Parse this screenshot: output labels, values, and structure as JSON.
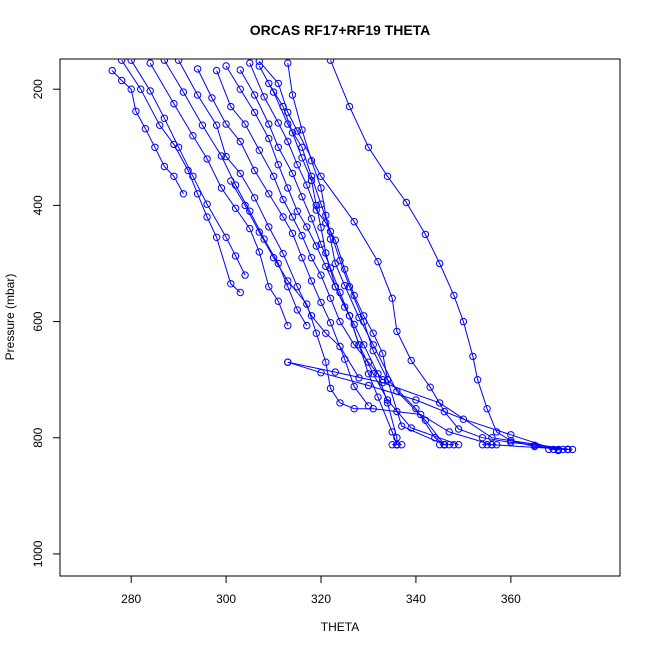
{
  "chart_data": {
    "type": "line",
    "title": "ORCAS RF17+RF19 THETA",
    "xlabel": "THETA",
    "ylabel": "Pressure (mbar)",
    "xlim": [
      265,
      383
    ],
    "ylim": [
      1038,
      148
    ],
    "y_reversed": true,
    "x_ticks": [
      280,
      300,
      320,
      340,
      360
    ],
    "y_ticks": [
      200,
      400,
      600,
      800,
      1000
    ],
    "grid": false,
    "legend": "none",
    "markers": "open-circle",
    "color": "#0000ff",
    "series": [
      {
        "points": [
          [
            276,
            168
          ],
          [
            278,
            185
          ],
          [
            280,
            200
          ],
          [
            281,
            238
          ],
          [
            283,
            268
          ],
          [
            285,
            300
          ],
          [
            287,
            333
          ],
          [
            289,
            350
          ],
          [
            291,
            380
          ]
        ]
      },
      {
        "points": [
          [
            278,
            150
          ],
          [
            282,
            200
          ],
          [
            286,
            262
          ],
          [
            289,
            295
          ],
          [
            292,
            340
          ],
          [
            294,
            380
          ],
          [
            296,
            420
          ],
          [
            298,
            455
          ],
          [
            301,
            535
          ],
          [
            303,
            550
          ]
        ]
      },
      {
        "points": [
          [
            280,
            150
          ],
          [
            284,
            203
          ],
          [
            287,
            250
          ],
          [
            290,
            300
          ],
          [
            293,
            350
          ],
          [
            296,
            398
          ],
          [
            300,
            455
          ],
          [
            302,
            487
          ],
          [
            304,
            520
          ]
        ]
      },
      {
        "points": [
          [
            284,
            155
          ],
          [
            289,
            225
          ],
          [
            293,
            280
          ],
          [
            296,
            320
          ],
          [
            299,
            370
          ],
          [
            302,
            405
          ],
          [
            305,
            440
          ],
          [
            307,
            480
          ],
          [
            309,
            540
          ],
          [
            311,
            565
          ],
          [
            313,
            607
          ]
        ]
      },
      {
        "points": [
          [
            287,
            150
          ],
          [
            291,
            205
          ],
          [
            295,
            262
          ],
          [
            299,
            315
          ],
          [
            302,
            365
          ],
          [
            305,
            410
          ],
          [
            308,
            458
          ],
          [
            311,
            500
          ],
          [
            313,
            540
          ],
          [
            315,
            580
          ],
          [
            317,
            607
          ]
        ]
      },
      {
        "points": [
          [
            290,
            150
          ],
          [
            294,
            210
          ],
          [
            298,
            262
          ],
          [
            300,
            316
          ],
          [
            303,
            345
          ],
          [
            306,
            387
          ],
          [
            309,
            437
          ],
          [
            312,
            483
          ],
          [
            315,
            540
          ],
          [
            318,
            590
          ],
          [
            321,
            620
          ],
          [
            324,
            643
          ],
          [
            328,
            697
          ]
        ]
      },
      {
        "points": [
          [
            294,
            165
          ],
          [
            297,
            215
          ],
          [
            300,
            260
          ],
          [
            303,
            290
          ],
          [
            306,
            340
          ],
          [
            309,
            380
          ],
          [
            312,
            420
          ],
          [
            314,
            448
          ],
          [
            316,
            490
          ],
          [
            318,
            530
          ],
          [
            320,
            567
          ],
          [
            322,
            602
          ],
          [
            325,
            665
          ],
          [
            327,
            712
          ],
          [
            330,
            745
          ]
        ]
      },
      {
        "points": [
          [
            298,
            168
          ],
          [
            301,
            230
          ],
          [
            304,
            260
          ],
          [
            307,
            305
          ],
          [
            310,
            350
          ],
          [
            312,
            390
          ],
          [
            314,
            420
          ],
          [
            316,
            452
          ],
          [
            318,
            490
          ],
          [
            320,
            520
          ],
          [
            322,
            560
          ],
          [
            324,
            600
          ],
          [
            327,
            640
          ],
          [
            330,
            670
          ],
          [
            333,
            700
          ]
        ]
      },
      {
        "points": [
          [
            300,
            160
          ],
          [
            303,
            200
          ],
          [
            306,
            240
          ],
          [
            309,
            285
          ],
          [
            311,
            330
          ],
          [
            313,
            370
          ],
          [
            315,
            410
          ],
          [
            317,
            437
          ],
          [
            319,
            470
          ],
          [
            321,
            505
          ],
          [
            323,
            540
          ],
          [
            325,
            575
          ],
          [
            327,
            605
          ],
          [
            329,
            640
          ],
          [
            332,
            690
          ],
          [
            334,
            740
          ],
          [
            336,
            800
          ],
          [
            336,
            812
          ]
        ]
      },
      {
        "points": [
          [
            303,
            167
          ],
          [
            306,
            210
          ],
          [
            309,
            260
          ],
          [
            311,
            300
          ],
          [
            314,
            345
          ],
          [
            316,
            385
          ],
          [
            318,
            423
          ],
          [
            320,
            467
          ],
          [
            322,
            508
          ],
          [
            324,
            550
          ],
          [
            326,
            590
          ],
          [
            328,
            640
          ],
          [
            330,
            690
          ],
          [
            332,
            730
          ],
          [
            335,
            790
          ],
          [
            336,
            812
          ]
        ]
      },
      {
        "points": [
          [
            305,
            155
          ],
          [
            308,
            213
          ],
          [
            311,
            258
          ],
          [
            313,
            290
          ],
          [
            315,
            330
          ],
          [
            317,
            365
          ],
          [
            319,
            408
          ],
          [
            321,
            430
          ],
          [
            323,
            460
          ],
          [
            325,
            510
          ],
          [
            327,
            555
          ],
          [
            329,
            590
          ],
          [
            331,
            620
          ],
          [
            333,
            655
          ],
          [
            334,
            700
          ],
          [
            340,
            750
          ],
          [
            344,
            800
          ],
          [
            346,
            812
          ]
        ]
      },
      {
        "points": [
          [
            309,
            190
          ],
          [
            312,
            230
          ],
          [
            314,
            275
          ],
          [
            316,
            318
          ],
          [
            318,
            357
          ],
          [
            319,
            400
          ],
          [
            320,
            438
          ],
          [
            321,
            482
          ],
          [
            323,
            540
          ],
          [
            326,
            590
          ],
          [
            328,
            640
          ],
          [
            331,
            690
          ],
          [
            334,
            735
          ],
          [
            339,
            783
          ],
          [
            349,
            812
          ]
        ]
      },
      {
        "points": [
          [
            313,
            155
          ],
          [
            314,
            210
          ],
          [
            316,
            270
          ],
          [
            318,
            323
          ],
          [
            320,
            370
          ],
          [
            321,
            417
          ],
          [
            322,
            458
          ],
          [
            323,
            500
          ],
          [
            325,
            538
          ],
          [
            328,
            593
          ],
          [
            331,
            640
          ],
          [
            336,
            720
          ],
          [
            342,
            770
          ],
          [
            346,
            812
          ]
        ]
      },
      {
        "points": [
          [
            301,
            358
          ],
          [
            304,
            400
          ],
          [
            307,
            446
          ],
          [
            310,
            490
          ],
          [
            313,
            530
          ],
          [
            317,
            570
          ],
          [
            319,
            620
          ],
          [
            321,
            670
          ],
          [
            322,
            715
          ],
          [
            324,
            740
          ],
          [
            327,
            750
          ],
          [
            331,
            750
          ],
          [
            336,
            755
          ],
          [
            341,
            760
          ],
          [
            347,
            790
          ],
          [
            356,
            812
          ],
          [
            372,
            820
          ]
        ]
      },
      {
        "points": [
          [
            307,
            160
          ],
          [
            310,
            205
          ],
          [
            313,
            260
          ],
          [
            316,
            300
          ],
          [
            318,
            350
          ],
          [
            320,
            398
          ],
          [
            322,
            445
          ],
          [
            324,
            495
          ],
          [
            326,
            540
          ],
          [
            329,
            600
          ],
          [
            331,
            650
          ],
          [
            334,
            700
          ],
          [
            337,
            780
          ],
          [
            346,
            812
          ]
        ]
      },
      {
        "points": [
          [
            313,
            670
          ],
          [
            320,
            688
          ],
          [
            330,
            710
          ],
          [
            340,
            735
          ],
          [
            350,
            768
          ],
          [
            360,
            795
          ],
          [
            370,
            822
          ]
        ]
      },
      {
        "points": [
          [
            313,
            670
          ],
          [
            323,
            687
          ],
          [
            333,
            705
          ],
          [
            345,
            740
          ],
          [
            356,
            800
          ],
          [
            372,
            820
          ]
        ]
      },
      {
        "points": [
          [
            322,
            150
          ],
          [
            326,
            230
          ],
          [
            330,
            300
          ],
          [
            334,
            350
          ],
          [
            338,
            395
          ],
          [
            342,
            450
          ],
          [
            345,
            500
          ],
          [
            348,
            555
          ],
          [
            350,
            600
          ],
          [
            352,
            660
          ],
          [
            353,
            700
          ],
          [
            355,
            750
          ],
          [
            357,
            790
          ],
          [
            360,
            805
          ],
          [
            365,
            815
          ],
          [
            372,
            820
          ]
        ]
      },
      {
        "points": [
          [
            307,
            152
          ],
          [
            311,
            190
          ],
          [
            313,
            240
          ],
          [
            315,
            272
          ],
          [
            320,
            350
          ],
          [
            327,
            428
          ],
          [
            332,
            497
          ],
          [
            335,
            560
          ],
          [
            336,
            617
          ],
          [
            339,
            667
          ],
          [
            343,
            713
          ],
          [
            346,
            755
          ],
          [
            349,
            785
          ],
          [
            354,
            800
          ],
          [
            360,
            808
          ],
          [
            365,
            813
          ],
          [
            372,
            820
          ]
        ]
      },
      {
        "points": [
          [
            335,
            812
          ],
          [
            336,
            812
          ],
          [
            337,
            812
          ]
        ]
      },
      {
        "points": [
          [
            345,
            812
          ],
          [
            346,
            812
          ],
          [
            347,
            812
          ],
          [
            348,
            812
          ]
        ]
      },
      {
        "points": [
          [
            354,
            812
          ],
          [
            355,
            812
          ],
          [
            356,
            812
          ],
          [
            357,
            812
          ]
        ]
      },
      {
        "points": [
          [
            368,
            820
          ],
          [
            369,
            820
          ],
          [
            370,
            820
          ],
          [
            371,
            820
          ],
          [
            372,
            820
          ],
          [
            373,
            820
          ]
        ]
      }
    ]
  }
}
